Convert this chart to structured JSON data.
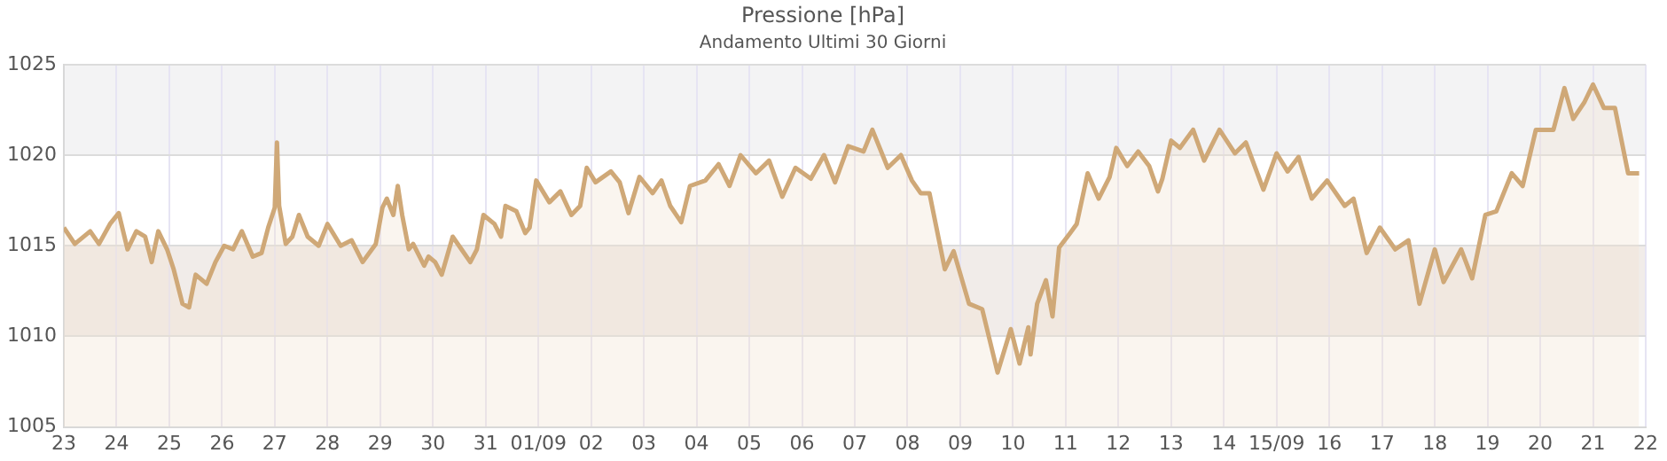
{
  "chart_data": {
    "type": "area",
    "title": "Pressione [hPa]",
    "subtitle": "Andamento Ultimi 30 Giorni",
    "x": [
      "--08-23T00:00",
      "--08-23T05:00",
      "--08-23T12:00",
      "--08-23T16:00",
      "--08-23T21:00",
      "--08-24T01:00",
      "--08-24T05:00",
      "--08-24T09:00",
      "--08-24T13:00",
      "--08-24T16:00",
      "--08-24T19:00",
      "--08-24T23:00",
      "--08-25T02:00",
      "--08-25T06:00",
      "--08-25T09:00",
      "--08-25T12:00",
      "--08-25T17:00",
      "--08-25T21:00",
      "--08-26T01:00",
      "--08-26T05:00",
      "--08-26T09:00",
      "--08-26T14:00",
      "--08-26T18:00",
      "--08-26T21:00",
      "--08-27T00:00",
      "--08-27T01:00",
      "--08-27T02:00",
      "--08-27T05:00",
      "--08-27T08:00",
      "--08-27T11:00",
      "--08-27T15:00",
      "--08-27T20:00",
      "--08-28T00:00",
      "--08-28T06:00",
      "--08-28T11:00",
      "--08-28T16:00",
      "--08-28T22:00",
      "--08-29T01:00",
      "--08-29T03:00",
      "--08-29T06:00",
      "--08-29T08:00",
      "--08-29T10:00",
      "--08-29T13:00",
      "--08-29T15:00",
      "--08-29T20:00",
      "--08-29T22:00",
      "--08-30T01:00",
      "--08-30T04:00",
      "--08-30T09:00",
      "--08-30T13:00",
      "--08-30T17:00",
      "--08-30T20:00",
      "--08-30T23:00",
      "--08-31T04:00",
      "--08-31T07:00",
      "--08-31T09:00",
      "--08-31T14:00",
      "--08-31T18:00",
      "--08-31T20:00",
      "--08-31T23:00",
      "--09-01T05:00",
      "--09-01T10:00",
      "--09-01T15:00",
      "--09-01T19:00",
      "--09-01T22:00",
      "--09-02T02:00",
      "--09-02T09:00",
      "--09-02T13:00",
      "--09-02T17:00",
      "--09-02T22:00",
      "--09-03T04:00",
      "--09-03T08:00",
      "--09-03T12:00",
      "--09-03T17:00",
      "--09-03T21:00",
      "--09-04T04:00",
      "--09-04T10:00",
      "--09-04T15:00",
      "--09-04T20:00",
      "--09-05T03:00",
      "--09-05T09:00",
      "--09-05T15:00",
      "--09-05T21:00",
      "--09-06T04:00",
      "--09-06T10:00",
      "--09-06T15:00",
      "--09-06T21:00",
      "--09-07T04:00",
      "--09-07T08:00",
      "--09-07T15:00",
      "--09-07T21:00",
      "--09-08T02:00",
      "--09-08T06:00",
      "--09-08T10:00",
      "--09-08T17:00",
      "--09-08T21:00",
      "--09-09T04:00",
      "--09-09T10:00",
      "--09-09T17:00",
      "--09-09T23:00",
      "--09-10T03:00",
      "--09-10T07:00",
      "--09-10T08:00",
      "--09-10T11:00",
      "--09-10T15:00",
      "--09-10T18:00",
      "--09-10T21:00",
      "--09-11T02:00",
      "--09-11T05:00",
      "--09-11T10:00",
      "--09-11T15:00",
      "--09-11T20:00",
      "--09-11T23:00",
      "--09-12T04:00",
      "--09-12T09:00",
      "--09-12T14:00",
      "--09-12T18:00",
      "--09-12T20:00",
      "--09-13T00:00",
      "--09-13T04:00",
      "--09-13T10:00",
      "--09-13T15:00",
      "--09-13T22:00",
      "--09-14T05:00",
      "--09-14T10:00",
      "--09-14T18:00",
      "--09-15T00:00",
      "--09-15T05:00",
      "--09-15T10:00",
      "--09-15T16:00",
      "--09-15T23:00",
      "--09-16T07:00",
      "--09-16T11:00",
      "--09-16T17:00",
      "--09-16T23:00",
      "--09-17T06:00",
      "--09-17T12:00",
      "--09-17T17:00",
      "--09-18T00:00",
      "--09-18T04:00",
      "--09-18T12:00",
      "--09-18T17:00",
      "--09-18T23:00",
      "--09-19T04:00",
      "--09-19T11:00",
      "--09-19T16:00",
      "--09-19T22:00",
      "--09-20T06:00",
      "--09-20T11:00",
      "--09-20T15:00",
      "--09-20T20:00",
      "--09-21T00:00",
      "--09-21T05:00",
      "--09-21T10:00",
      "--09-21T16:00",
      "--09-21T21:00"
    ],
    "series": [
      {
        "color": "#cfa877",
        "values": [
          1016.0,
          1015.1,
          1015.8,
          1015.1,
          1016.2,
          1016.8,
          1014.8,
          1015.8,
          1015.5,
          1014.1,
          1015.8,
          1014.8,
          1013.7,
          1011.8,
          1011.6,
          1013.4,
          1012.9,
          1014.1,
          1015.0,
          1014.8,
          1015.8,
          1014.4,
          1014.6,
          1016.0,
          1017.1,
          1020.7,
          1017.2,
          1015.1,
          1015.5,
          1016.7,
          1015.5,
          1015.0,
          1016.2,
          1015.0,
          1015.3,
          1014.1,
          1015.1,
          1017.1,
          1017.6,
          1016.7,
          1018.3,
          1016.7,
          1014.8,
          1015.1,
          1013.9,
          1014.4,
          1014.1,
          1013.4,
          1015.5,
          1014.8,
          1014.1,
          1014.8,
          1016.7,
          1016.2,
          1015.5,
          1017.2,
          1016.9,
          1015.7,
          1016.0,
          1018.6,
          1017.4,
          1018.0,
          1016.7,
          1017.2,
          1019.3,
          1018.5,
          1019.1,
          1018.5,
          1016.8,
          1018.8,
          1017.9,
          1018.6,
          1017.2,
          1016.3,
          1018.3,
          1018.6,
          1019.5,
          1018.3,
          1020.0,
          1019.0,
          1019.7,
          1017.7,
          1019.3,
          1018.7,
          1020.0,
          1018.5,
          1020.5,
          1020.2,
          1021.4,
          1019.3,
          1020.0,
          1018.6,
          1017.9,
          1017.9,
          1013.7,
          1014.7,
          1011.8,
          1011.5,
          1008.0,
          1010.4,
          1008.5,
          1010.5,
          1009.0,
          1011.8,
          1013.1,
          1011.1,
          1014.9,
          1015.7,
          1016.2,
          1019.0,
          1017.6,
          1018.8,
          1020.4,
          1019.4,
          1020.2,
          1019.4,
          1018.0,
          1018.7,
          1020.8,
          1020.4,
          1021.4,
          1019.7,
          1021.4,
          1020.1,
          1020.7,
          1018.1,
          1020.1,
          1019.1,
          1019.9,
          1017.6,
          1018.6,
          1017.2,
          1017.6,
          1014.6,
          1016.0,
          1014.8,
          1015.3,
          1011.8,
          1014.8,
          1013.0,
          1014.8,
          1013.2,
          1016.7,
          1016.9,
          1019.0,
          1018.3,
          1021.4,
          1021.4,
          1023.7,
          1022.0,
          1022.9,
          1023.9,
          1022.6,
          1022.6,
          1019.0,
          1019.0
        ]
      }
    ],
    "xlim": [
      "--08-23",
      "--09-22"
    ],
    "xticks": [
      {
        "value": "--08-23",
        "label": "23"
      },
      {
        "value": "--08-24",
        "label": "24"
      },
      {
        "value": "--08-25",
        "label": "25"
      },
      {
        "value": "--08-26",
        "label": "26"
      },
      {
        "value": "--08-27",
        "label": "27"
      },
      {
        "value": "--08-28",
        "label": "28"
      },
      {
        "value": "--08-29",
        "label": "29"
      },
      {
        "value": "--08-30",
        "label": "30"
      },
      {
        "value": "--08-31",
        "label": "31"
      },
      {
        "value": "--09-01",
        "label": "01/09"
      },
      {
        "value": "--09-02",
        "label": "02"
      },
      {
        "value": "--09-03",
        "label": "03"
      },
      {
        "value": "--09-04",
        "label": "04"
      },
      {
        "value": "--09-05",
        "label": "05"
      },
      {
        "value": "--09-06",
        "label": "06"
      },
      {
        "value": "--09-07",
        "label": "07"
      },
      {
        "value": "--09-08",
        "label": "08"
      },
      {
        "value": "--09-09",
        "label": "09"
      },
      {
        "value": "--09-10",
        "label": "10"
      },
      {
        "value": "--09-11",
        "label": "11"
      },
      {
        "value": "--09-12",
        "label": "12"
      },
      {
        "value": "--09-13",
        "label": "13"
      },
      {
        "value": "--09-14",
        "label": "14"
      },
      {
        "value": "--09-15",
        "label": "15/09"
      },
      {
        "value": "--09-16",
        "label": "16"
      },
      {
        "value": "--09-17",
        "label": "17"
      },
      {
        "value": "--09-18",
        "label": "18"
      },
      {
        "value": "--09-19",
        "label": "19"
      },
      {
        "value": "--09-20",
        "label": "20"
      },
      {
        "value": "--09-21",
        "label": "21"
      },
      {
        "value": "--09-22",
        "label": "22"
      }
    ],
    "ylim": [
      1005,
      1025
    ],
    "yticks": [
      1005,
      1010,
      1015,
      1020,
      1025
    ],
    "bands": [
      {
        "axis": "y",
        "from": 1020,
        "to": 1025,
        "color": "#f3f3f4"
      },
      {
        "axis": "y",
        "from": 1010,
        "to": 1015,
        "color": "#f1ece9"
      }
    ],
    "grid": true,
    "legend": false,
    "marker": "none",
    "line_style": "solid"
  }
}
